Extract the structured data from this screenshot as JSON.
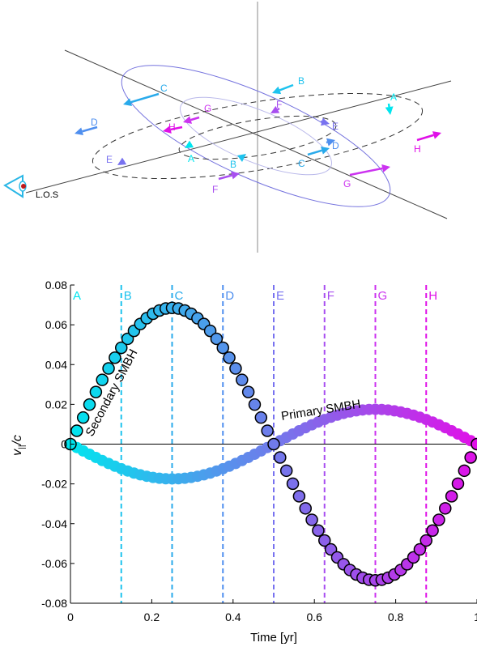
{
  "diagram": {
    "los_label": "L.O.S",
    "outer_labels": [
      "A",
      "B",
      "C",
      "D",
      "E",
      "F",
      "G",
      "H"
    ],
    "inner_labels": [
      "A",
      "B",
      "C",
      "D",
      "E",
      "F",
      "G",
      "H"
    ],
    "colors": {
      "A": "#00e5ee",
      "B": "#1ec3ee",
      "C": "#29aaeb",
      "D": "#4f8fef",
      "E": "#7872f0",
      "F": "#a84ff0",
      "G": "#cc33f0",
      "H": "#e010e8"
    },
    "orbit_color": "#6f6cd6"
  },
  "chart_data": {
    "type": "scatter",
    "xlabel": "Time [yr]",
    "ylabel": "v_||/c",
    "xlim": [
      0,
      1
    ],
    "ylim": [
      -0.08,
      0.08
    ],
    "x_ticks": [
      "0",
      "0.2",
      "0.4",
      "0.6",
      "0.8",
      "1"
    ],
    "y_ticks": [
      "-0.08",
      "-0.06",
      "-0.04",
      "-0.02",
      "0",
      "0.02",
      "0.04",
      "0.06",
      "0.08"
    ],
    "grid": false,
    "series": [
      {
        "name": "Secondary SMBH",
        "amplitude": 0.0685,
        "period_yr": 1,
        "phase": "sine",
        "n_points": 65,
        "marker_edge": "#000000"
      },
      {
        "name": "Primary SMBH",
        "amplitude": -0.0175,
        "period_yr": 1,
        "phase": "sine",
        "n_points": 65,
        "marker_edge": "none"
      }
    ],
    "vlines": [
      {
        "label": "A",
        "x": 0.0,
        "color": "#00e5ee"
      },
      {
        "label": "B",
        "x": 0.125,
        "color": "#1ec3ee"
      },
      {
        "label": "C",
        "x": 0.25,
        "color": "#29aaeb"
      },
      {
        "label": "D",
        "x": 0.375,
        "color": "#4f8fef"
      },
      {
        "label": "E",
        "x": 0.5,
        "color": "#7872f0"
      },
      {
        "label": "F",
        "x": 0.625,
        "color": "#a84ff0"
      },
      {
        "label": "G",
        "x": 0.75,
        "color": "#cc33f0"
      },
      {
        "label": "H",
        "x": 0.875,
        "color": "#e010e8"
      }
    ],
    "colormap": [
      "#00e5ee",
      "#e010e8"
    ]
  }
}
